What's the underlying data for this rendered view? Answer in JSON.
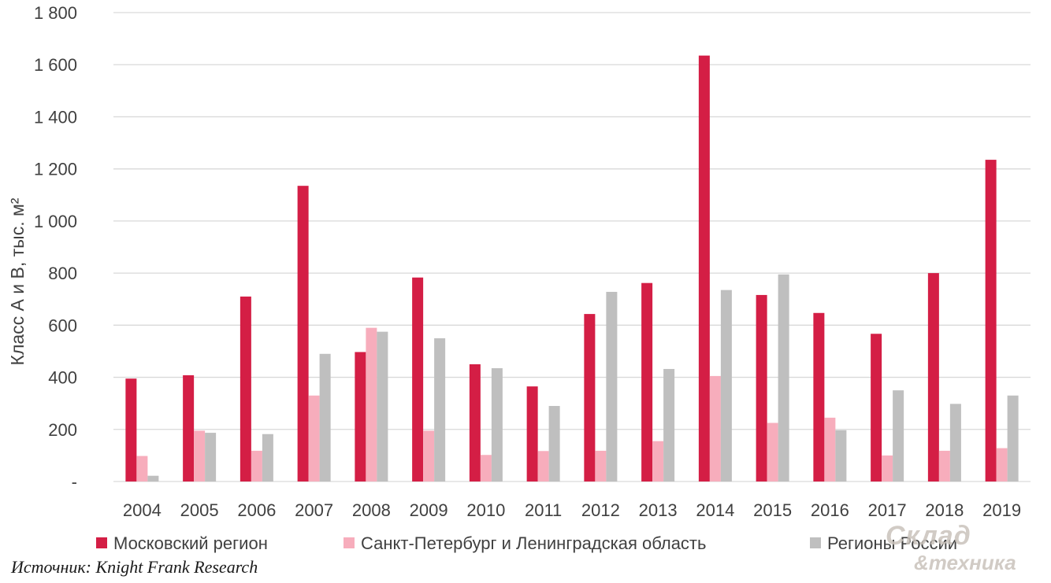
{
  "chart_data": {
    "type": "bar",
    "title": "",
    "ylabel": "Класс А и В, тыс. м²",
    "xlabel": "",
    "ylim": [
      0,
      1800
    ],
    "yticks": [
      0,
      200,
      400,
      600,
      800,
      1000,
      1200,
      1400,
      1600,
      1800
    ],
    "ytick_labels": [
      "-",
      "200",
      "400",
      "600",
      "800",
      "1 000",
      "1 200",
      "1 400",
      "1 600",
      "1 800"
    ],
    "grid": true,
    "legend_position": "bottom",
    "categories": [
      "2004",
      "2005",
      "2006",
      "2007",
      "2008",
      "2009",
      "2010",
      "2011",
      "2012",
      "2013",
      "2014",
      "2015",
      "2016",
      "2017",
      "2018",
      "2019"
    ],
    "series": [
      {
        "name": "Московский регион",
        "color": "#d41e45",
        "values": [
          395,
          408,
          710,
          1135,
          497,
          783,
          450,
          365,
          643,
          762,
          1635,
          716,
          647,
          567,
          800,
          1235
        ]
      },
      {
        "name": "Санкт-Петербург и Ленинградская область",
        "color": "#f7adbc",
        "values": [
          98,
          195,
          118,
          330,
          590,
          195,
          102,
          117,
          118,
          155,
          405,
          225,
          245,
          100,
          118,
          128
        ]
      },
      {
        "name": "Регионы России",
        "color": "#bfbfbf",
        "values": [
          22,
          187,
          182,
          490,
          575,
          550,
          435,
          290,
          728,
          432,
          735,
          795,
          197,
          350,
          298,
          330
        ]
      }
    ]
  },
  "source_text": "Источник: Knight Frank Research",
  "watermark": {
    "line1": "Склад",
    "line2": "&техника"
  },
  "colors": {
    "grid": "#d9d9d9",
    "axis_text": "#404040"
  }
}
